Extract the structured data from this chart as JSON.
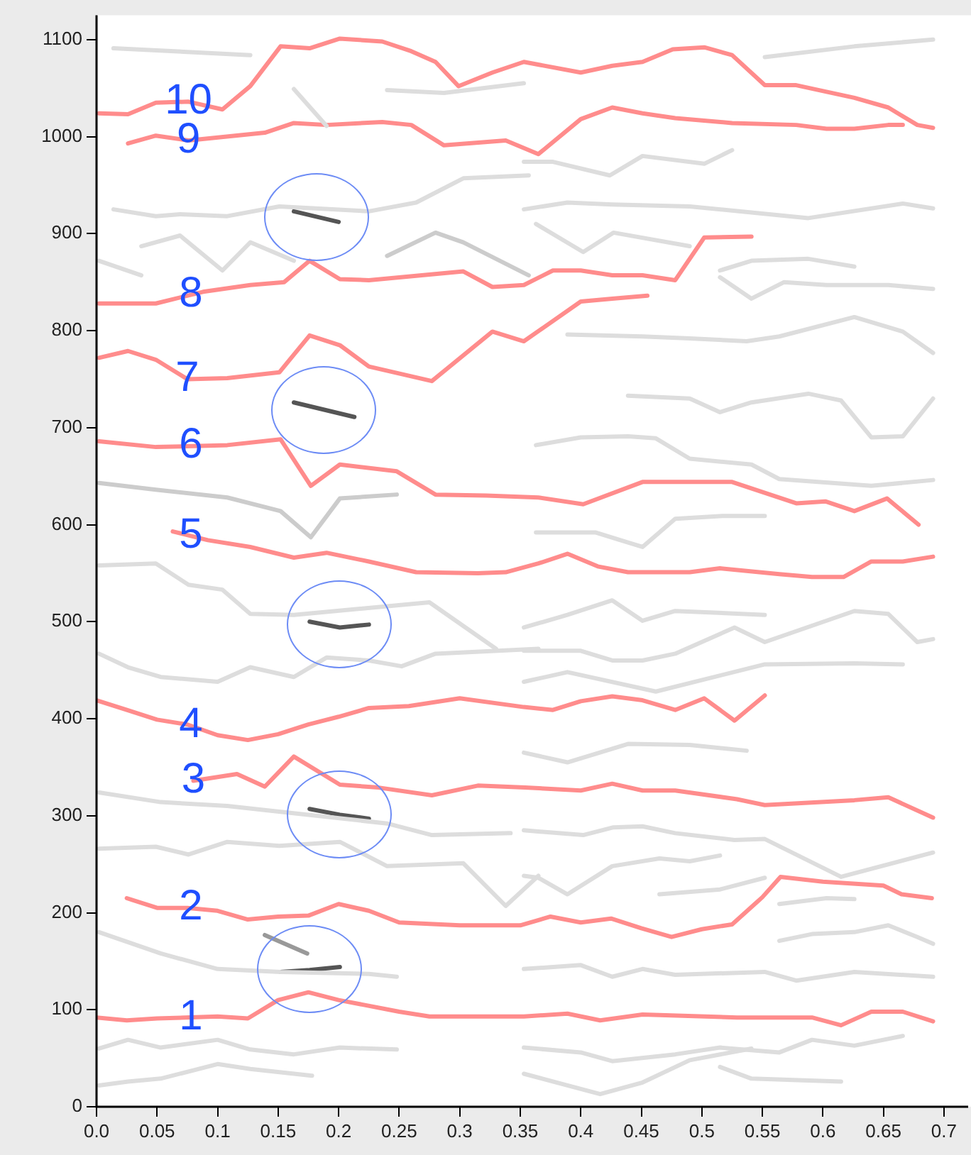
{
  "chart_data": {
    "type": "line",
    "xlim": [
      0,
      0.72
    ],
    "ylim": [
      0,
      1125
    ],
    "xticks": [
      {
        "value": 0,
        "label": "0.0"
      },
      0.05,
      0.1,
      0.15,
      0.2,
      0.25,
      0.3,
      0.35,
      0.4,
      0.45,
      0.5,
      0.55,
      0.6,
      0.65,
      0.7
    ],
    "yticks": [
      0,
      100,
      200,
      300,
      400,
      500,
      600,
      700,
      800,
      900,
      1000,
      1100
    ],
    "grid": false,
    "legend": false,
    "marker": "none",
    "line_style": "solid",
    "annotations": [
      {
        "text": "10",
        "x": 0.076,
        "y": 1036
      },
      {
        "text": "9",
        "x": 0.076,
        "y": 996
      },
      {
        "text": "8",
        "x": 0.078,
        "y": 837
      },
      {
        "text": "7",
        "x": 0.075,
        "y": 750
      },
      {
        "text": "6",
        "x": 0.078,
        "y": 681
      },
      {
        "text": "5",
        "x": 0.078,
        "y": 588
      },
      {
        "text": "4",
        "x": 0.078,
        "y": 393
      },
      {
        "text": "3",
        "x": 0.08,
        "y": 336
      },
      {
        "text": "2",
        "x": 0.078,
        "y": 205
      },
      {
        "text": "1",
        "x": 0.078,
        "y": 92
      }
    ],
    "series": [
      {
        "color": "#dddddd",
        "x": [
          0.002,
          0.026,
          0.053,
          0.1,
          0.127,
          0.163,
          0.201,
          0.248
        ],
        "values": [
          60,
          69,
          61,
          69,
          59,
          54,
          61,
          59
        ]
      },
      {
        "color": "#dddddd",
        "x": [
          0.002,
          0.026,
          0.053,
          0.1,
          0.127,
          0.178
        ],
        "values": [
          22,
          26,
          29,
          44,
          39,
          32
        ]
      },
      {
        "color": "#dddddd",
        "x": [
          0.002,
          0.049,
          0.076,
          0.108,
          0.151,
          0.201,
          0.24,
          0.303,
          0.338,
          0.365
        ],
        "values": [
          266,
          268,
          260,
          273,
          269,
          273,
          248,
          251,
          207,
          238
        ]
      },
      {
        "color": "#dddddd",
        "x": [
          0.002,
          0.053,
          0.1,
          0.152,
          0.225,
          0.248
        ],
        "values": [
          180,
          158,
          142,
          139,
          137,
          134
        ]
      },
      {
        "color": "#dddddd",
        "x": [
          0.002,
          0.053,
          0.108,
          0.152,
          0.24,
          0.277,
          0.342
        ],
        "values": [
          324,
          314,
          310,
          304,
          292,
          280,
          282
        ]
      },
      {
        "color": "#dddddd",
        "x": [
          0.002,
          0.049,
          0.076,
          0.104,
          0.127,
          0.163,
          0.275,
          0.33
        ],
        "values": [
          558,
          560,
          538,
          533,
          508,
          507,
          520,
          472
        ]
      },
      {
        "color": "#cccccc",
        "x": [
          0.002,
          0.049,
          0.108,
          0.152,
          0.177,
          0.201,
          0.248
        ],
        "values": [
          643,
          636,
          628,
          614,
          587,
          627,
          631
        ]
      },
      {
        "color": "#dddddd",
        "x": [
          0.002,
          0.026,
          0.053,
          0.1,
          0.127,
          0.163,
          0.19,
          0.225,
          0.252,
          0.28,
          0.365
        ],
        "values": [
          467,
          453,
          443,
          438,
          453,
          443,
          463,
          460,
          454,
          467,
          472
        ]
      },
      {
        "color": "#dddddd",
        "x": [
          0.014,
          0.049,
          0.069,
          0.108,
          0.151,
          0.225,
          0.264,
          0.303,
          0.357
        ],
        "values": [
          925,
          918,
          920,
          918,
          928,
          923,
          932,
          957,
          960
        ]
      },
      {
        "color": "#dddddd",
        "x": [
          0.037,
          0.069,
          0.104,
          0.127,
          0.163
        ],
        "values": [
          887,
          898,
          862,
          891,
          872
        ]
      },
      {
        "color": "#dddddd",
        "x": [
          0.002,
          0.037
        ],
        "values": [
          872,
          857
        ]
      },
      {
        "color": "#cccccc",
        "x": [
          0.24,
          0.28,
          0.303,
          0.357
        ],
        "values": [
          877,
          901,
          891,
          857
        ]
      },
      {
        "color": "#dddddd",
        "x": [
          0.014,
          0.127
        ],
        "values": [
          1091,
          1084
        ]
      },
      {
        "color": "#dddddd",
        "x": [
          0.163,
          0.19
        ],
        "values": [
          1049,
          1011
        ]
      },
      {
        "color": "#dddddd",
        "x": [
          0.24,
          0.287,
          0.353
        ],
        "values": [
          1048,
          1045,
          1055
        ]
      },
      {
        "color": "#dddddd",
        "x": [
          0.353,
          0.389,
          0.426,
          0.49,
          0.588,
          0.666,
          0.691
        ],
        "values": [
          925,
          932,
          930,
          928,
          916,
          931,
          926
        ]
      },
      {
        "color": "#dddddd",
        "x": [
          0.353,
          0.377,
          0.424,
          0.451,
          0.502,
          0.525
        ],
        "values": [
          974,
          974,
          960,
          980,
          972,
          986
        ]
      },
      {
        "color": "#dddddd",
        "x": [
          0.552,
          0.626,
          0.691
        ],
        "values": [
          1082,
          1093,
          1100
        ]
      },
      {
        "color": "#dddddd",
        "x": [
          0.363,
          0.402,
          0.427,
          0.49
        ],
        "values": [
          910,
          881,
          901,
          887
        ]
      },
      {
        "color": "#dddddd",
        "x": [
          0.515,
          0.541,
          0.588,
          0.626
        ],
        "values": [
          862,
          872,
          874,
          866
        ]
      },
      {
        "color": "#dddddd",
        "x": [
          0.515,
          0.541,
          0.568,
          0.603,
          0.654,
          0.691
        ],
        "values": [
          855,
          833,
          850,
          847,
          847,
          843
        ]
      },
      {
        "color": "#dddddd",
        "x": [
          0.389,
          0.451,
          0.49,
          0.537,
          0.564,
          0.626,
          0.666,
          0.691
        ],
        "values": [
          796,
          794,
          792,
          789,
          794,
          814,
          799,
          777
        ]
      },
      {
        "color": "#dddddd",
        "x": [
          0.363,
          0.4,
          0.439,
          0.462,
          0.49,
          0.541,
          0.564,
          0.64,
          0.691
        ],
        "values": [
          682,
          690,
          691,
          689,
          668,
          662,
          647,
          640,
          646
        ]
      },
      {
        "color": "#dddddd",
        "x": [
          0.439,
          0.49,
          0.515,
          0.541,
          0.588,
          0.615,
          0.64,
          0.666,
          0.691
        ],
        "values": [
          733,
          730,
          716,
          726,
          735,
          728,
          690,
          691,
          730
        ]
      },
      {
        "color": "#dddddd",
        "x": [
          0.363,
          0.412,
          0.451,
          0.478,
          0.517,
          0.552
        ],
        "values": [
          592,
          592,
          577,
          606,
          609,
          609
        ]
      },
      {
        "color": "#dddddd",
        "x": [
          0.353,
          0.389,
          0.426,
          0.451,
          0.478,
          0.552
        ],
        "values": [
          494,
          507,
          522,
          501,
          511,
          507
        ]
      },
      {
        "color": "#dddddd",
        "x": [
          0.353,
          0.4,
          0.426,
          0.451,
          0.478,
          0.527,
          0.552,
          0.626,
          0.654,
          0.678,
          0.691
        ],
        "values": [
          470,
          470,
          460,
          460,
          467,
          494,
          479,
          511,
          508,
          479,
          482
        ]
      },
      {
        "color": "#dddddd",
        "x": [
          0.353,
          0.389,
          0.462,
          0.552,
          0.626,
          0.666
        ],
        "values": [
          438,
          448,
          428,
          456,
          457,
          456
        ]
      },
      {
        "color": "#dddddd",
        "x": [
          0.353,
          0.389,
          0.439,
          0.49,
          0.537
        ],
        "values": [
          365,
          355,
          374,
          373,
          367
        ]
      },
      {
        "color": "#dddddd",
        "x": [
          0.353,
          0.402,
          0.427,
          0.451,
          0.478,
          0.527,
          0.552,
          0.615,
          0.691
        ],
        "values": [
          285,
          280,
          288,
          289,
          282,
          275,
          276,
          237,
          262
        ]
      },
      {
        "color": "#dddddd",
        "x": [
          0.564,
          0.591,
          0.626,
          0.654,
          0.678,
          0.691
        ],
        "values": [
          171,
          178,
          180,
          187,
          175,
          168
        ]
      },
      {
        "color": "#dddddd",
        "x": [
          0.353,
          0.4,
          0.426,
          0.451,
          0.478,
          0.552,
          0.578,
          0.626,
          0.691
        ],
        "values": [
          142,
          146,
          134,
          142,
          136,
          139,
          130,
          139,
          134
        ]
      },
      {
        "color": "#dddddd",
        "x": [
          0.353,
          0.4,
          0.426,
          0.478,
          0.515,
          0.564,
          0.591,
          0.626,
          0.666
        ],
        "values": [
          61,
          56,
          47,
          54,
          61,
          56,
          69,
          63,
          73
        ]
      },
      {
        "color": "#dddddd",
        "x": [
          0.353,
          0.416,
          0.451,
          0.49,
          0.541
        ],
        "values": [
          34,
          13,
          25,
          48,
          60
        ]
      },
      {
        "color": "#dddddd",
        "x": [
          0.515,
          0.541,
          0.615
        ],
        "values": [
          41,
          29,
          26
        ]
      },
      {
        "color": "#dddddd",
        "x": [
          0.353,
          0.365,
          0.389,
          0.426,
          0.465,
          0.49,
          0.515
        ],
        "values": [
          238,
          236,
          219,
          248,
          256,
          253,
          259
        ]
      },
      {
        "color": "#dddddd",
        "x": [
          0.465,
          0.515,
          0.552
        ],
        "values": [
          219,
          224,
          236
        ]
      },
      {
        "color": "#dddddd",
        "x": [
          0.564,
          0.603,
          0.626
        ],
        "values": [
          209,
          215,
          214
        ]
      },
      {
        "color": "#999999",
        "x": [
          0.139,
          0.174
        ],
        "values": [
          177,
          158
        ]
      },
      {
        "color": "#555555",
        "x": [
          0.163,
          0.2
        ],
        "values": [
          923,
          912
        ]
      },
      {
        "color": "#555555",
        "x": [
          0.163,
          0.213
        ],
        "values": [
          726,
          711
        ]
      },
      {
        "color": "#555555",
        "x": [
          0.176,
          0.201,
          0.225
        ],
        "values": [
          500,
          494,
          497
        ]
      },
      {
        "color": "#555555",
        "x": [
          0.176,
          0.201,
          0.225
        ],
        "values": [
          307,
          301,
          297
        ]
      },
      {
        "color": "#555555",
        "x": [
          0.152,
          0.176,
          0.201
        ],
        "values": [
          139,
          141,
          144
        ]
      },
      {
        "color": "#ff8c8c",
        "x": [
          0,
          0.025,
          0.05,
          0.1,
          0.125,
          0.15,
          0.175,
          0.2,
          0.25,
          0.275,
          0.353,
          0.389,
          0.416,
          0.451,
          0.529,
          0.591,
          0.615,
          0.64,
          0.666,
          0.691
        ],
        "values": [
          92,
          89,
          91,
          93,
          91,
          110,
          118,
          110,
          98,
          93,
          93,
          96,
          89,
          95,
          92,
          92,
          84,
          98,
          98,
          88
        ]
      },
      {
        "color": "#ff8c8c",
        "x": [
          0.025,
          0.05,
          0.075,
          0.1,
          0.125,
          0.15,
          0.175,
          0.2,
          0.225,
          0.25,
          0.3,
          0.35,
          0.375,
          0.4,
          0.425,
          0.45,
          0.475,
          0.5,
          0.525,
          0.55,
          0.565,
          0.6,
          0.65,
          0.665,
          0.69
        ],
        "values": [
          215,
          205,
          205,
          202,
          193,
          196,
          197,
          209,
          202,
          190,
          187,
          187,
          196,
          190,
          194,
          184,
          175,
          183,
          188,
          216,
          237,
          232,
          228,
          219,
          215
        ]
      },
      {
        "color": "#ff8c8c",
        "x": [
          0.08,
          0.116,
          0.139,
          0.163,
          0.201,
          0.233,
          0.277,
          0.315,
          0.354,
          0.4,
          0.426,
          0.451,
          0.478,
          0.529,
          0.552,
          0.626,
          0.654,
          0.691
        ],
        "values": [
          336,
          343,
          330,
          361,
          332,
          329,
          321,
          331,
          329,
          326,
          333,
          326,
          326,
          317,
          311,
          316,
          319,
          298
        ]
      },
      {
        "color": "#ff8c8c",
        "x": [
          0,
          0.025,
          0.05,
          0.075,
          0.1,
          0.125,
          0.15,
          0.175,
          0.2,
          0.225,
          0.258,
          0.3,
          0.353,
          0.377,
          0.4,
          0.426,
          0.451,
          0.478,
          0.502,
          0.527,
          0.552
        ],
        "values": [
          419,
          409,
          399,
          394,
          383,
          378,
          384,
          394,
          402,
          411,
          413,
          421,
          412,
          409,
          418,
          423,
          419,
          409,
          421,
          398,
          424
        ]
      },
      {
        "color": "#ff8c8c",
        "x": [
          0.063,
          0.092,
          0.127,
          0.163,
          0.19,
          0.225,
          0.264,
          0.315,
          0.338,
          0.365,
          0.389,
          0.414,
          0.439,
          0.49,
          0.515,
          0.564,
          0.591,
          0.617,
          0.64,
          0.666,
          0.691
        ],
        "values": [
          593,
          584,
          577,
          566,
          571,
          562,
          551,
          550,
          551,
          560,
          570,
          557,
          551,
          551,
          555,
          549,
          546,
          546,
          562,
          562,
          567
        ]
      },
      {
        "color": "#ff8c8c",
        "x": [
          0.002,
          0.049,
          0.108,
          0.152,
          0.177,
          0.201,
          0.248,
          0.28,
          0.322,
          0.365,
          0.402,
          0.451,
          0.525,
          0.578,
          0.602,
          0.626,
          0.653,
          0.679
        ],
        "values": [
          686,
          680,
          682,
          688,
          640,
          662,
          655,
          631,
          630,
          628,
          621,
          644,
          644,
          622,
          624,
          614,
          627,
          600
        ]
      },
      {
        "color": "#ff8c8c",
        "x": [
          0.002,
          0.026,
          0.049,
          0.075,
          0.108,
          0.151,
          0.176,
          0.201,
          0.225,
          0.277,
          0.327,
          0.353,
          0.4,
          0.426,
          0.455
        ],
        "values": [
          772,
          779,
          770,
          750,
          751,
          757,
          795,
          785,
          763,
          748,
          799,
          789,
          830,
          833,
          836
        ]
      },
      {
        "color": "#ff8c8c",
        "x": [
          0.002,
          0.049,
          0.088,
          0.127,
          0.155,
          0.176,
          0.201,
          0.225,
          0.303,
          0.327,
          0.353,
          0.377,
          0.4,
          0.426,
          0.451,
          0.478,
          0.502,
          0.541
        ],
        "values": [
          828,
          828,
          840,
          847,
          850,
          872,
          853,
          852,
          861,
          845,
          847,
          862,
          862,
          857,
          857,
          852,
          896,
          897
        ]
      },
      {
        "color": "#ff8c8c",
        "x": [
          0.026,
          0.049,
          0.076,
          0.139,
          0.163,
          0.19,
          0.236,
          0.26,
          0.287,
          0.338,
          0.365,
          0.4,
          0.426,
          0.451,
          0.478,
          0.525,
          0.578,
          0.603,
          0.626,
          0.654,
          0.666
        ],
        "values": [
          993,
          1001,
          996,
          1004,
          1014,
          1012,
          1015,
          1012,
          991,
          996,
          982,
          1018,
          1030,
          1024,
          1019,
          1014,
          1012,
          1008,
          1008,
          1012,
          1012
        ]
      },
      {
        "color": "#ff8c8c",
        "x": [
          0.002,
          0.026,
          0.049,
          0.076,
          0.104,
          0.127,
          0.152,
          0.176,
          0.201,
          0.236,
          0.26,
          0.28,
          0.299,
          0.327,
          0.353,
          0.4,
          0.426,
          0.451,
          0.476,
          0.502,
          0.525,
          0.552,
          0.578,
          0.626,
          0.654,
          0.678,
          0.691
        ],
        "values": [
          1024,
          1023,
          1035,
          1036,
          1028,
          1052,
          1093,
          1091,
          1101,
          1098,
          1088,
          1077,
          1052,
          1066,
          1077,
          1066,
          1073,
          1077,
          1090,
          1092,
          1084,
          1053,
          1053,
          1040,
          1030,
          1012,
          1009
        ]
      }
    ]
  }
}
